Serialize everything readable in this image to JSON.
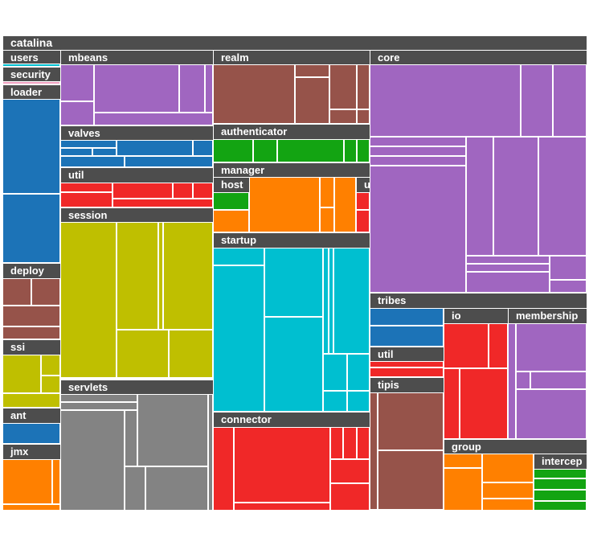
{
  "chart_data": {
    "type": "treemap",
    "root": "catalina",
    "colors": {
      "header": "#4d4d4d",
      "purple": "#a066c0",
      "brown": "#96534a",
      "blue": "#1c73b7",
      "green": "#13a412",
      "red": "#f02828",
      "orange": "#ff8000",
      "olive": "#bfbf00",
      "cyan": "#00bfd0",
      "gray": "#838383"
    },
    "packages": [
      {
        "name": "users",
        "color": "cyan"
      },
      {
        "name": "security",
        "color": "pink"
      },
      {
        "name": "loader",
        "color": "blue"
      },
      {
        "name": "deploy",
        "color": "brown"
      },
      {
        "name": "ssi",
        "color": "olive"
      },
      {
        "name": "ant",
        "color": "blue"
      },
      {
        "name": "jmx",
        "color": "orange"
      },
      {
        "name": "mbeans",
        "color": "purple"
      },
      {
        "name": "valves",
        "color": "blue"
      },
      {
        "name": "util",
        "color": "red"
      },
      {
        "name": "session",
        "color": "olive"
      },
      {
        "name": "servlets",
        "color": "gray"
      },
      {
        "name": "realm",
        "color": "brown"
      },
      {
        "name": "authenticator",
        "color": "green"
      },
      {
        "name": "manager",
        "color": "orange"
      },
      {
        "name": "host",
        "color": "green"
      },
      {
        "name": "u",
        "color": "red"
      },
      {
        "name": "startup",
        "color": "cyan"
      },
      {
        "name": "connector",
        "color": "red"
      },
      {
        "name": "core",
        "color": "purple"
      },
      {
        "name": "tribes",
        "color": "blue"
      },
      {
        "name": "io",
        "color": "red"
      },
      {
        "name": "membership",
        "color": "purple"
      },
      {
        "name": "util",
        "color": "red"
      },
      {
        "name": "tipis",
        "color": "brown"
      },
      {
        "name": "group",
        "color": "orange"
      },
      {
        "name": "intercep",
        "color": "green"
      }
    ]
  }
}
